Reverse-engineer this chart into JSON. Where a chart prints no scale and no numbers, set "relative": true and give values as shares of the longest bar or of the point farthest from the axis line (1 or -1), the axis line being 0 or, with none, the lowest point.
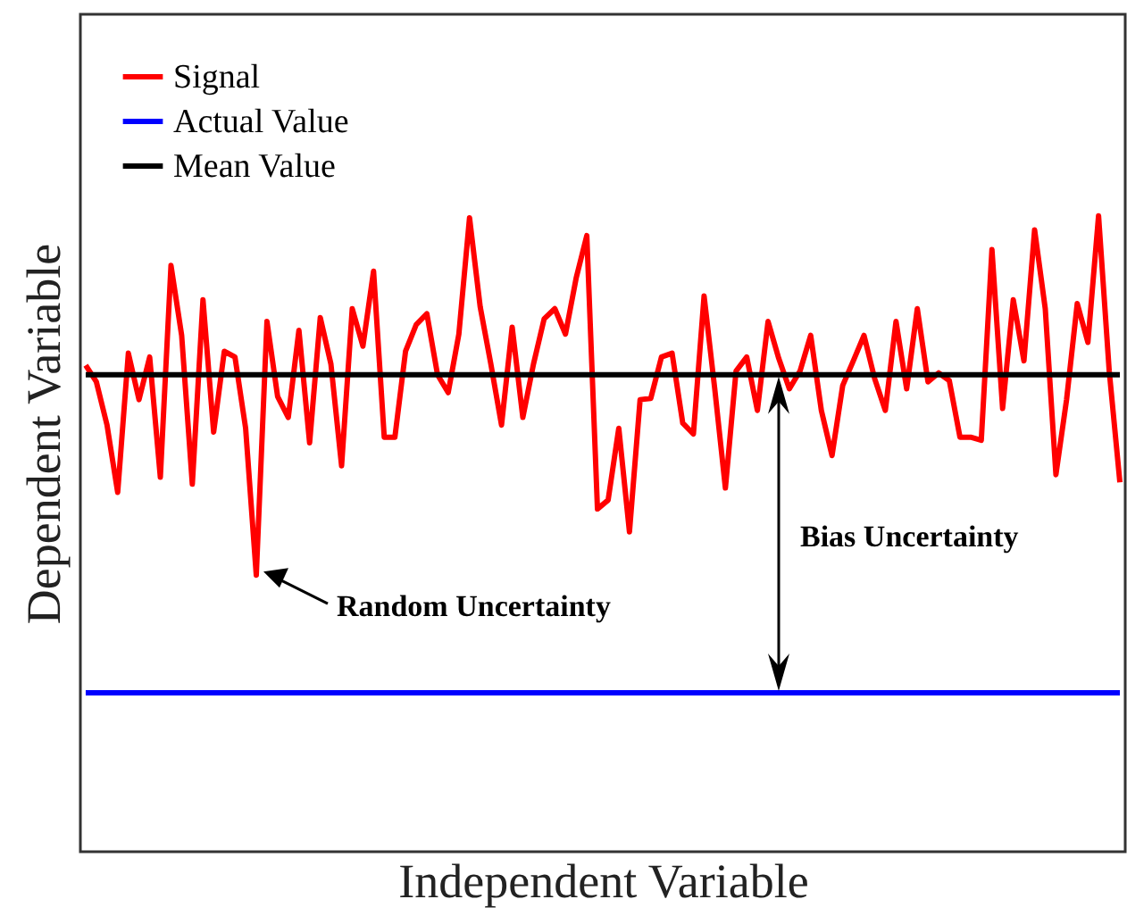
{
  "chart_data": {
    "type": "line",
    "relative": true,
    "xlabel": "Independent Variable",
    "ylabel": "Dependent Variable",
    "legend": "top left",
    "grid": false,
    "categories": [
      null,
      null,
      null,
      null,
      null,
      null,
      null,
      null,
      null,
      null,
      null,
      null,
      null,
      null,
      null,
      null,
      null,
      null,
      null,
      null,
      null,
      null,
      null,
      null,
      null,
      null,
      null,
      null,
      null,
      null,
      null,
      null,
      null,
      null,
      null,
      null,
      null,
      null,
      null,
      null,
      null,
      null,
      null,
      null,
      null,
      null,
      null,
      null,
      null,
      null,
      null,
      null,
      null,
      null,
      null,
      null,
      null,
      null,
      null,
      null,
      null,
      null,
      null,
      null,
      null,
      null,
      null,
      null,
      null,
      null,
      null,
      null,
      null,
      null,
      null,
      null,
      null,
      null,
      null,
      null,
      null,
      null,
      null,
      null,
      null,
      null,
      null,
      null,
      null,
      null,
      null,
      null,
      null,
      null,
      null,
      null,
      null,
      null
    ],
    "series": [
      {
        "name": "Signal",
        "color": "#ff0000",
        "values": [
          0.765,
          0.739,
          0.671,
          0.565,
          0.784,
          0.711,
          0.778,
          0.589,
          0.922,
          0.812,
          0.578,
          0.868,
          0.66,
          0.787,
          0.778,
          0.666,
          0.435,
          0.834,
          0.716,
          0.683,
          0.82,
          0.643,
          0.84,
          0.767,
          0.607,
          0.854,
          0.795,
          0.913,
          0.652,
          0.652,
          0.787,
          0.829,
          0.846,
          0.75,
          0.722,
          0.814,
          0.997,
          0.857,
          0.767,
          0.671,
          0.825,
          0.683,
          0.767,
          0.838,
          0.854,
          0.814,
          0.902,
          0.969,
          0.539,
          0.553,
          0.666,
          0.503,
          0.711,
          0.713,
          0.778,
          0.784,
          0.674,
          0.657,
          0.874,
          0.728,
          0.572,
          0.756,
          0.778,
          0.694,
          0.834,
          0.776,
          0.728,
          0.756,
          0.812,
          0.694,
          0.623,
          0.733,
          0.772,
          0.812,
          0.744,
          0.694,
          0.834,
          0.728,
          0.854,
          0.739,
          0.753,
          0.741,
          0.652,
          0.652,
          0.647,
          0.947,
          0.697,
          0.868,
          0.772,
          0.978,
          0.854,
          0.593,
          0.711,
          0.862,
          0.801,
          1,
          0.756,
          0.581
        ]
      },
      {
        "name": "Actual Value",
        "color": "#0000ff",
        "values": [
          0.25,
          0.25,
          0.25,
          0.25,
          0.25,
          0.25,
          0.25,
          0.25,
          0.25,
          0.25,
          0.25,
          0.25,
          0.25,
          0.25,
          0.25,
          0.25,
          0.25,
          0.25,
          0.25,
          0.25,
          0.25,
          0.25,
          0.25,
          0.25,
          0.25,
          0.25,
          0.25,
          0.25,
          0.25,
          0.25,
          0.25,
          0.25,
          0.25,
          0.25,
          0.25,
          0.25,
          0.25,
          0.25,
          0.25,
          0.25,
          0.25,
          0.25,
          0.25,
          0.25,
          0.25,
          0.25,
          0.25,
          0.25,
          0.25,
          0.25,
          0.25,
          0.25,
          0.25,
          0.25,
          0.25,
          0.25,
          0.25,
          0.25,
          0.25,
          0.25,
          0.25,
          0.25,
          0.25,
          0.25,
          0.25,
          0.25,
          0.25,
          0.25,
          0.25,
          0.25,
          0.25,
          0.25,
          0.25,
          0.25,
          0.25,
          0.25,
          0.25,
          0.25,
          0.25,
          0.25,
          0.25,
          0.25,
          0.25,
          0.25,
          0.25,
          0.25,
          0.25,
          0.25,
          0.25,
          0.25,
          0.25,
          0.25,
          0.25,
          0.25,
          0.25,
          0.25,
          0.25,
          0.25
        ]
      },
      {
        "name": "Mean Value",
        "color": "#000000",
        "values": [
          0.75,
          0.75,
          0.75,
          0.75,
          0.75,
          0.75,
          0.75,
          0.75,
          0.75,
          0.75,
          0.75,
          0.75,
          0.75,
          0.75,
          0.75,
          0.75,
          0.75,
          0.75,
          0.75,
          0.75,
          0.75,
          0.75,
          0.75,
          0.75,
          0.75,
          0.75,
          0.75,
          0.75,
          0.75,
          0.75,
          0.75,
          0.75,
          0.75,
          0.75,
          0.75,
          0.75,
          0.75,
          0.75,
          0.75,
          0.75,
          0.75,
          0.75,
          0.75,
          0.75,
          0.75,
          0.75,
          0.75,
          0.75,
          0.75,
          0.75,
          0.75,
          0.75,
          0.75,
          0.75,
          0.75,
          0.75,
          0.75,
          0.75,
          0.75,
          0.75,
          0.75,
          0.75,
          0.75,
          0.75,
          0.75,
          0.75,
          0.75,
          0.75,
          0.75,
          0.75,
          0.75,
          0.75,
          0.75,
          0.75,
          0.75,
          0.75,
          0.75,
          0.75,
          0.75,
          0.75,
          0.75,
          0.75,
          0.75,
          0.75,
          0.75,
          0.75,
          0.75,
          0.75,
          0.75,
          0.75,
          0.75,
          0.75,
          0.75,
          0.75,
          0.75,
          0.75,
          0.75,
          0.75
        ]
      }
    ],
    "annotations": [
      "Random Uncertainty",
      "Bias Uncertainty"
    ]
  }
}
